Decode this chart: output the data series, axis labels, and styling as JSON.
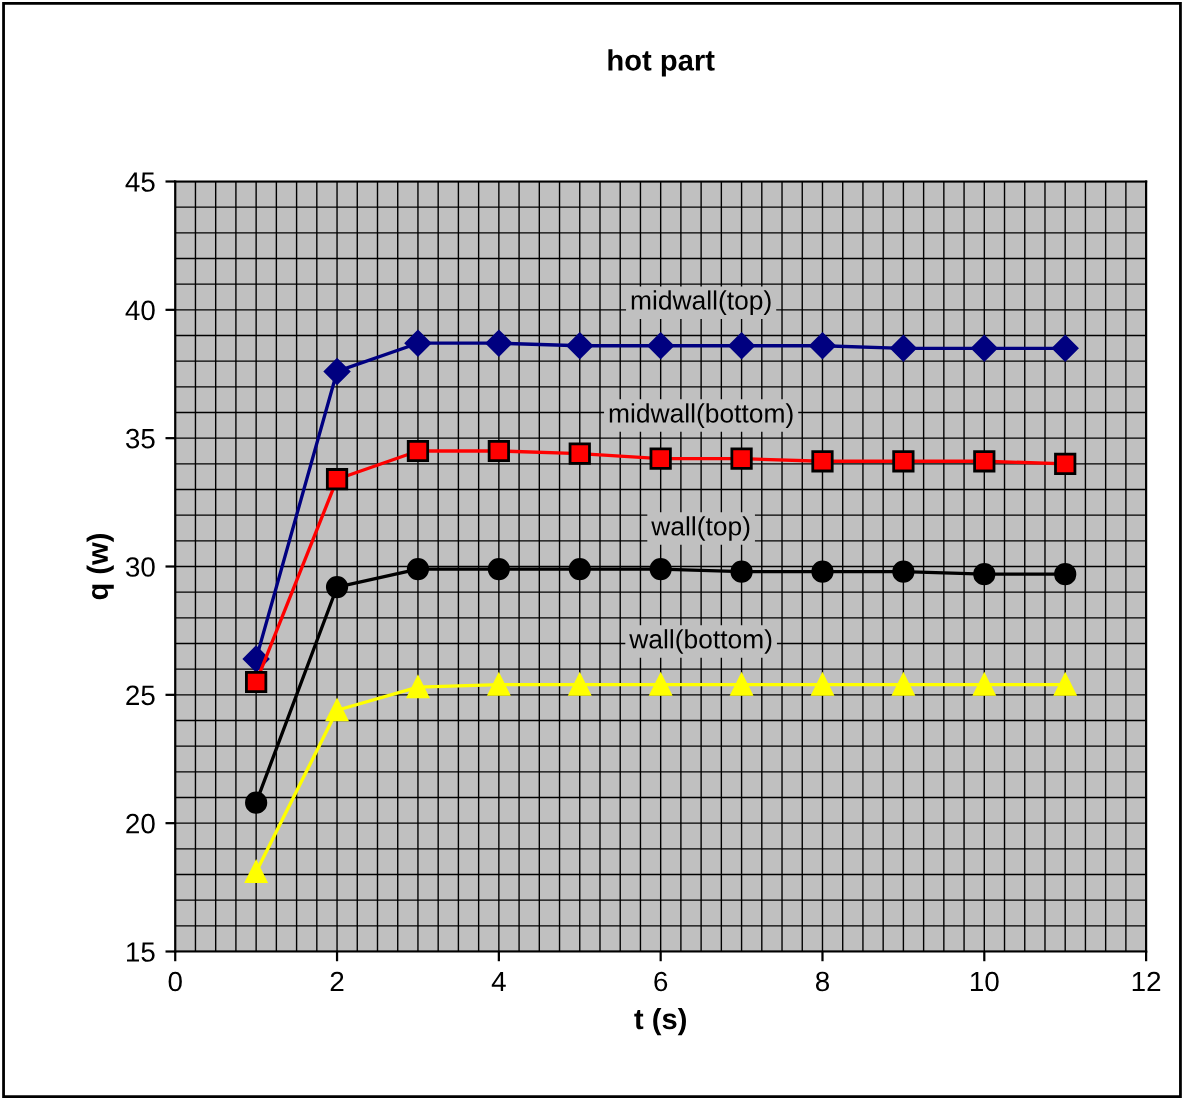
{
  "chart_data": {
    "type": "line",
    "title": "hot part",
    "xlabel": "t (s)",
    "ylabel": "q (w)",
    "x": [
      1,
      2,
      3,
      4,
      5,
      6,
      7,
      8,
      9,
      10,
      11
    ],
    "series": [
      {
        "name": "midwall(top)",
        "color": "#000080",
        "marker": "diamond",
        "values": [
          26.4,
          37.6,
          38.7,
          38.7,
          38.6,
          38.6,
          38.6,
          38.6,
          38.5,
          38.5,
          38.5
        ]
      },
      {
        "name": "midwall(bottom)",
        "color": "#ff0000",
        "marker": "square",
        "values": [
          25.5,
          33.4,
          34.5,
          34.5,
          34.4,
          34.2,
          34.2,
          34.1,
          34.1,
          34.1,
          34.0
        ]
      },
      {
        "name": "wall(top)",
        "color": "#000000",
        "marker": "circle",
        "values": [
          20.8,
          29.2,
          29.9,
          29.9,
          29.9,
          29.9,
          29.8,
          29.8,
          29.8,
          29.7,
          29.7
        ]
      },
      {
        "name": "wall(bottom)",
        "color": "#ffff00",
        "marker": "triangle",
        "values": [
          18.1,
          24.4,
          25.3,
          25.4,
          25.4,
          25.4,
          25.4,
          25.4,
          25.4,
          25.4,
          25.4
        ]
      }
    ],
    "xlim": [
      0,
      12
    ],
    "xticks": [
      0,
      2,
      4,
      6,
      8,
      10,
      12
    ],
    "ylim": [
      15,
      45
    ],
    "yticks": [
      15,
      20,
      25,
      30,
      35,
      40,
      45
    ],
    "grid": true,
    "legend": false,
    "line_style": "solid"
  }
}
